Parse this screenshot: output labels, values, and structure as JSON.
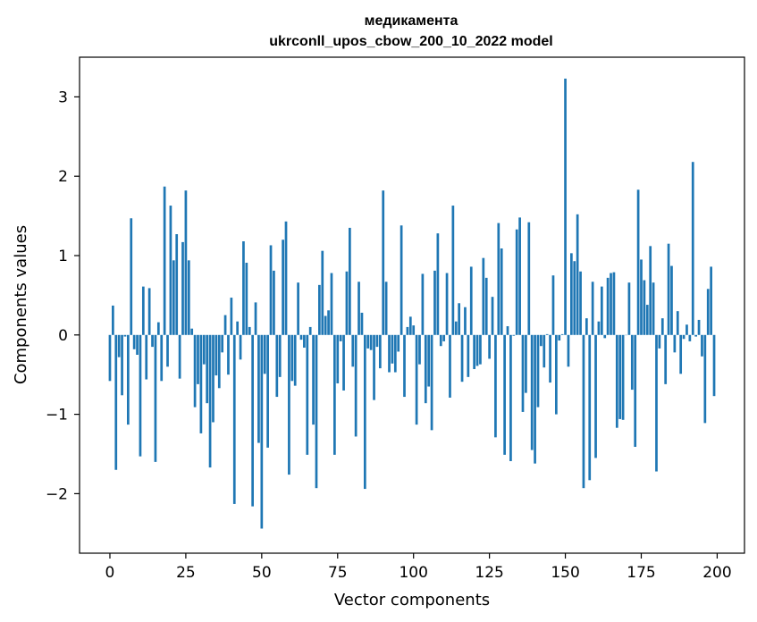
{
  "chart_data": {
    "type": "bar",
    "title_line1": "медикамента",
    "title_line2": "ukrconll_upos_cbow_200_10_2022 model",
    "xlabel": "Vector components",
    "ylabel": "Components values",
    "xlim": [
      -10,
      209
    ],
    "ylim": [
      -2.75,
      3.5
    ],
    "xticks": [
      0,
      25,
      50,
      75,
      100,
      125,
      150,
      175,
      200
    ],
    "xtick_labels": [
      "0",
      "25",
      "50",
      "75",
      "100",
      "125",
      "150",
      "175",
      "200"
    ],
    "yticks": [
      -2,
      -1,
      0,
      1,
      2,
      3
    ],
    "ytick_labels": [
      "−2",
      "−1",
      "0",
      "1",
      "2",
      "3"
    ],
    "bar_color": "#1f77b4",
    "values": [
      -0.58,
      0.37,
      -1.7,
      -0.28,
      -0.76,
      -0.02,
      -1.13,
      1.47,
      -0.18,
      -0.25,
      -1.53,
      0.61,
      -0.56,
      0.59,
      -0.15,
      -1.6,
      0.16,
      -0.58,
      1.87,
      -0.4,
      1.63,
      0.94,
      1.27,
      -0.55,
      1.17,
      1.82,
      0.94,
      0.08,
      -0.91,
      -0.62,
      -1.24,
      -0.37,
      -0.86,
      -1.67,
      -1.1,
      -0.51,
      -0.67,
      -0.22,
      0.25,
      -0.5,
      0.47,
      -2.13,
      0.17,
      -0.31,
      1.18,
      0.91,
      0.1,
      -2.16,
      0.41,
      -1.36,
      -2.44,
      -0.49,
      -1.42,
      1.13,
      0.81,
      -0.78,
      -0.53,
      1.2,
      1.43,
      -1.76,
      -0.58,
      -0.64,
      0.66,
      -0.06,
      -0.16,
      -1.51,
      0.1,
      -1.13,
      -1.93,
      0.63,
      1.06,
      0.24,
      0.31,
      0.78,
      -1.51,
      -0.61,
      -0.08,
      -0.7,
      0.8,
      1.35,
      -0.4,
      -1.28,
      0.67,
      0.28,
      -1.94,
      -0.17,
      -0.19,
      -0.82,
      -0.15,
      -0.42,
      1.82,
      0.67,
      -0.47,
      -0.36,
      -0.47,
      -0.21,
      1.38,
      -0.78,
      0.1,
      0.23,
      0.12,
      -1.13,
      -0.37,
      0.77,
      -0.86,
      -0.65,
      -1.2,
      0.81,
      1.28,
      -0.14,
      -0.08,
      0.78,
      -0.79,
      1.63,
      0.17,
      0.4,
      -0.59,
      0.35,
      -0.53,
      0.86,
      -0.43,
      -0.39,
      -0.37,
      0.97,
      0.72,
      -0.3,
      0.48,
      -1.29,
      1.41,
      1.09,
      -1.51,
      0.11,
      -1.59,
      -0.01,
      1.33,
      1.48,
      -0.97,
      -0.73,
      1.42,
      -1.45,
      -1.62,
      -0.91,
      -0.14,
      -0.41,
      0.01,
      -0.6,
      0.75,
      -1.0,
      -0.07,
      0.01,
      3.23,
      -0.4,
      1.03,
      0.93,
      1.52,
      0.8,
      -1.93,
      0.21,
      -1.83,
      0.67,
      -1.55,
      0.17,
      0.61,
      -0.04,
      0.72,
      0.78,
      0.79,
      -1.17,
      -1.06,
      -1.07,
      0.0,
      0.66,
      -0.69,
      -1.41,
      1.83,
      0.95,
      0.69,
      0.38,
      1.12,
      0.66,
      -1.72,
      -0.17,
      0.21,
      -0.62,
      1.15,
      0.87,
      -0.22,
      0.3,
      -0.49,
      -0.05,
      0.13,
      -0.08,
      2.18,
      -0.02,
      0.19,
      -0.27,
      -1.11,
      0.58,
      0.86,
      -0.77
    ]
  }
}
